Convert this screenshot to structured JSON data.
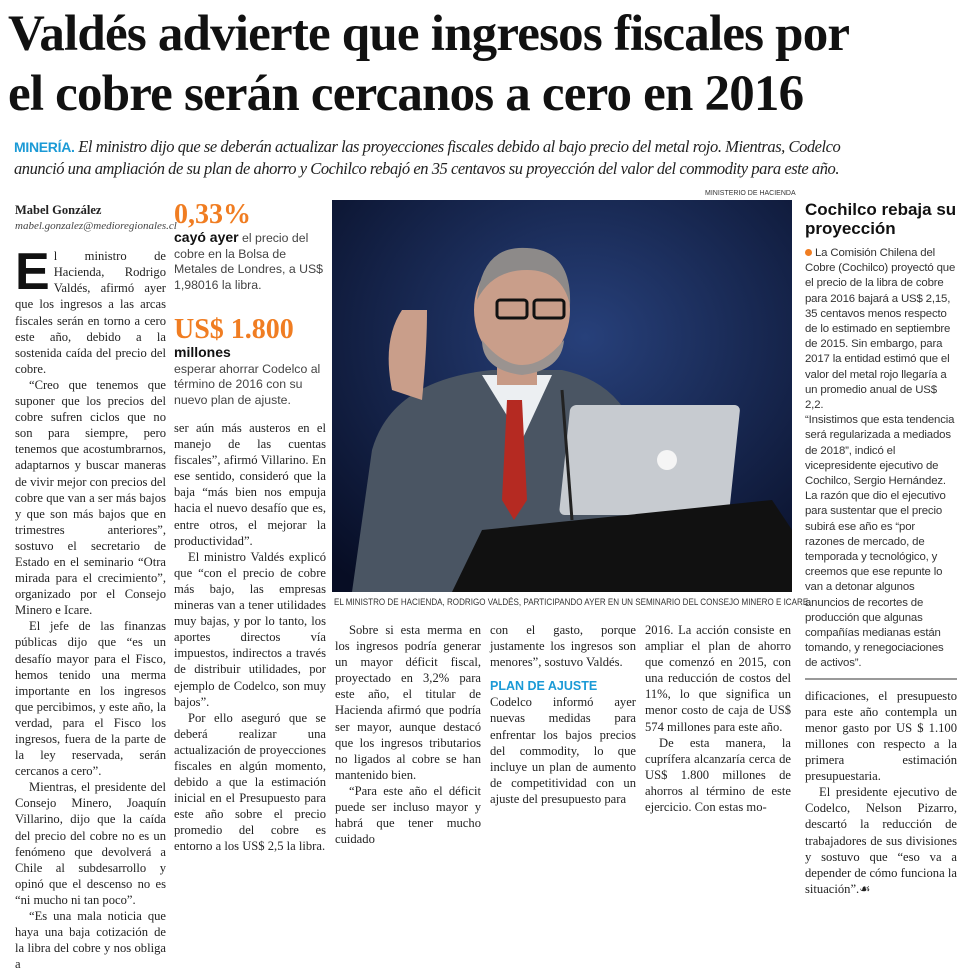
{
  "headline": {
    "line1": "Valdés advierte que ingresos fiscales por",
    "line2": "el cobre serán cercanos a cero en 2016"
  },
  "deck": {
    "kicker": "MINERÍA.",
    "line1": "El ministro dijo que se deberán actualizar las proyecciones fiscales debido al bajo precio del metal rojo. Mientras, Codelco",
    "line2": "anunció una ampliación de su plan de ahorro y Cochilco rebajó en 35 centavos su proyección del valor del commodity para este año."
  },
  "byline": {
    "author": "Mabel González",
    "email": "mabel.gonzalez@medioregionales.cl"
  },
  "col1": {
    "drop": "E",
    "p1": "l ministro de Hacienda, Rodrigo Valdés, afirmó ayer que los ingresos a las arcas fiscales serán en torno a cero este año, debido a la sostenida caída del precio del cobre.",
    "p2": "“Creo que tenemos que suponer que los precios del cobre sufren ciclos que no son para siempre, pero tenemos que acostumbrarnos, adaptarnos y buscar maneras de vivir mejor con precios del cobre que van a ser más bajos y que son más bajos que en trimestres anteriores”, sostuvo el secretario de Estado en el seminario “Otra mirada para el crecimiento”, organizado por el Consejo Minero e Icare.",
    "p3": "El jefe de las finanzas públicas dijo que “es un desafío mayor para el Fisco, hemos tenido una merma importante en los ingresos que percibimos, y este año, la verdad, para el Fisco los ingresos, fuera de la parte de la ley reservada, serán cercanos a cero”.",
    "p4": "Mientras, el presidente del Consejo Minero, Joaquín Villarino, dijo que la caída del precio del cobre no es un fenómeno que devolverá a Chile al subdesarrollo y opinó que el descenso no es “ni mucho ni tan poco”.",
    "p5": "“Es una mala noticia que haya una baja cotización de la libra del cobre y nos obliga a"
  },
  "stats": [
    {
      "value": "0,33%",
      "lead": "cayó ayer",
      "text": " el precio del cobre en la Bolsa de Metales de Londres, a US$ 1,98016 la libra."
    },
    {
      "value": "US$ 1.800",
      "lead": "millones",
      "text": "esperar ahorrar Codelco al término de 2016 con su nuevo plan de ajuste."
    }
  ],
  "col2": {
    "p1": "ser aún más austeros en el manejo de las cuentas fiscales”, afirmó Villarino. En ese sentido, consideró que la baja “más bien nos empuja hacia el nuevo desafío que es, entre otros, el mejorar la productividad”.",
    "p2": "El ministro Valdés explicó que “con el precio de cobre más bajo, las empresas mineras van a tener utilidades muy bajas, y por lo tanto, los aportes directos vía impuestos, indirectos a través de distribuir utilidades, por ejemplo de Codelco, son muy bajos”.",
    "p3": "Por ello aseguró que se deberá realizar una actualización de proyecciones fiscales en algún momento, debido a que la estimación inicial en el Presupuesto para este año sobre el precio promedio del cobre es entorno a los US$ 2,5 la libra."
  },
  "photo": {
    "credit": "MINISTERIO DE HACIENDA",
    "caption": "EL MINISTRO DE HACIENDA, RODRIGO VALDÉS, PARTICIPANDO AYER EN UN SEMINARIO DEL CONSEJO MINERO E ICARE."
  },
  "col3": {
    "p1": "Sobre si esta merma en los ingresos podría generar un mayor déficit fiscal, proyectado en 3,2% para este año, el titular de Hacienda afirmó que podría ser mayor, aunque destacó que los ingresos tributarios no ligados al cobre se han mantenido bien.",
    "p2": "“Para este año el déficit puede ser incluso mayor y habrá que tener mucho cuidado"
  },
  "col4": {
    "p1": "con el gasto, porque justamente los ingresos son menores”, sostuvo Valdés.",
    "subhead": "PLAN DE AJUSTE",
    "p2": "Codelco informó ayer nuevas medidas para enfrentar los bajos precios del commodity, lo que incluye un plan de aumento de competitividad con un ajuste del presupuesto para"
  },
  "col5": {
    "p1": "2016. La acción consiste en ampliar el plan de ahorro que comenzó en 2015, con una reducción de costos del 11%, lo que significa un menor costo de caja de US$ 574 millones para este año.",
    "p2": "De esta manera, la cuprífera alcanzaría cerca de US$ 1.800 millones de ahorros al término de este ejercicio. Con estas mo-"
  },
  "col6": {
    "p1": "dificaciones, el presupuesto para este año contempla un menor gasto por US $ 1.100 millones con respecto a la primera estimación presupuestaria.",
    "p2": "El presidente ejecutivo de Codelco, Nelson Pizarro, descartó la reducción de trabajadores de sus divisiones y sostuvo que “eso va a depender de cómo funciona la situación”.",
    "end": "☙"
  },
  "sidebar": {
    "title": "Cochilco rebaja su proyección",
    "p1": "La Comisión Chilena del Cobre (Cochilco) proyectó que el precio de la libra de cobre para 2016 bajará a US$ 2,15, 35 centavos menos respecto de lo estimado en septiembre de 2015. Sin embargo, para 2017 la entidad estimó que el valor del metal rojo llegaría a un promedio anual de US$ 2,2.",
    "p2": "“Insistimos que esta tendencia será regularizada a mediados de 2018”, indicó el vicepresidente ejecutivo de Cochilco, Sergio Hernández. La razón que dio el ejecutivo para sustentar que el precio subirá ese año es “por razones de mercado, de temporada y tecnológico, y creemos que ese repunte lo van a detonar algunos anuncios de recortes de producción que algunas compañías medianas están tomando, y renegociaciones de activos”."
  },
  "colors": {
    "accent_orange": "#f07d22",
    "accent_blue": "#1b9ad6"
  }
}
